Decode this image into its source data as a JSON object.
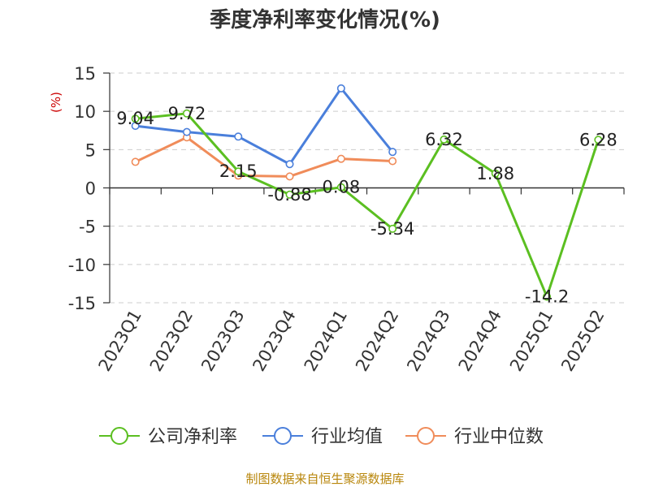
{
  "chart_data": {
    "type": "line",
    "title": "季度净利率变化情况(%)",
    "ylabel": "(%)",
    "xlabel": "",
    "categories": [
      "2023Q1",
      "2023Q2",
      "2023Q3",
      "2023Q4",
      "2024Q1",
      "2024Q2",
      "2024Q3",
      "2024Q4",
      "2025Q1",
      "2025Q2"
    ],
    "ylim": [
      -15,
      15
    ],
    "yticks": [
      15,
      10,
      5,
      0,
      -5,
      -10,
      -15
    ],
    "grid": true,
    "legend_position": "bottom",
    "series": [
      {
        "name": "公司净利率",
        "color": "#5bbf21",
        "values": [
          9.04,
          9.72,
          2.15,
          -0.88,
          0.08,
          -5.34,
          6.32,
          1.88,
          -14.2,
          6.28
        ],
        "labels": [
          "9.04",
          "9.72",
          "2.15",
          "-0.88",
          "0.08",
          "-5.34",
          "6.32",
          "1.88",
          "-14.2",
          "6.28"
        ]
      },
      {
        "name": "行业均值",
        "color": "#4a7fdb",
        "values": [
          8.1,
          7.3,
          6.7,
          3.1,
          13.0,
          4.7,
          null,
          null,
          null,
          null
        ]
      },
      {
        "name": "行业中位数",
        "color": "#f08c5a",
        "values": [
          3.4,
          6.6,
          1.6,
          1.5,
          3.8,
          3.5,
          null,
          null,
          null,
          null
        ]
      }
    ]
  },
  "source": "制图数据来自恒生聚源数据库"
}
